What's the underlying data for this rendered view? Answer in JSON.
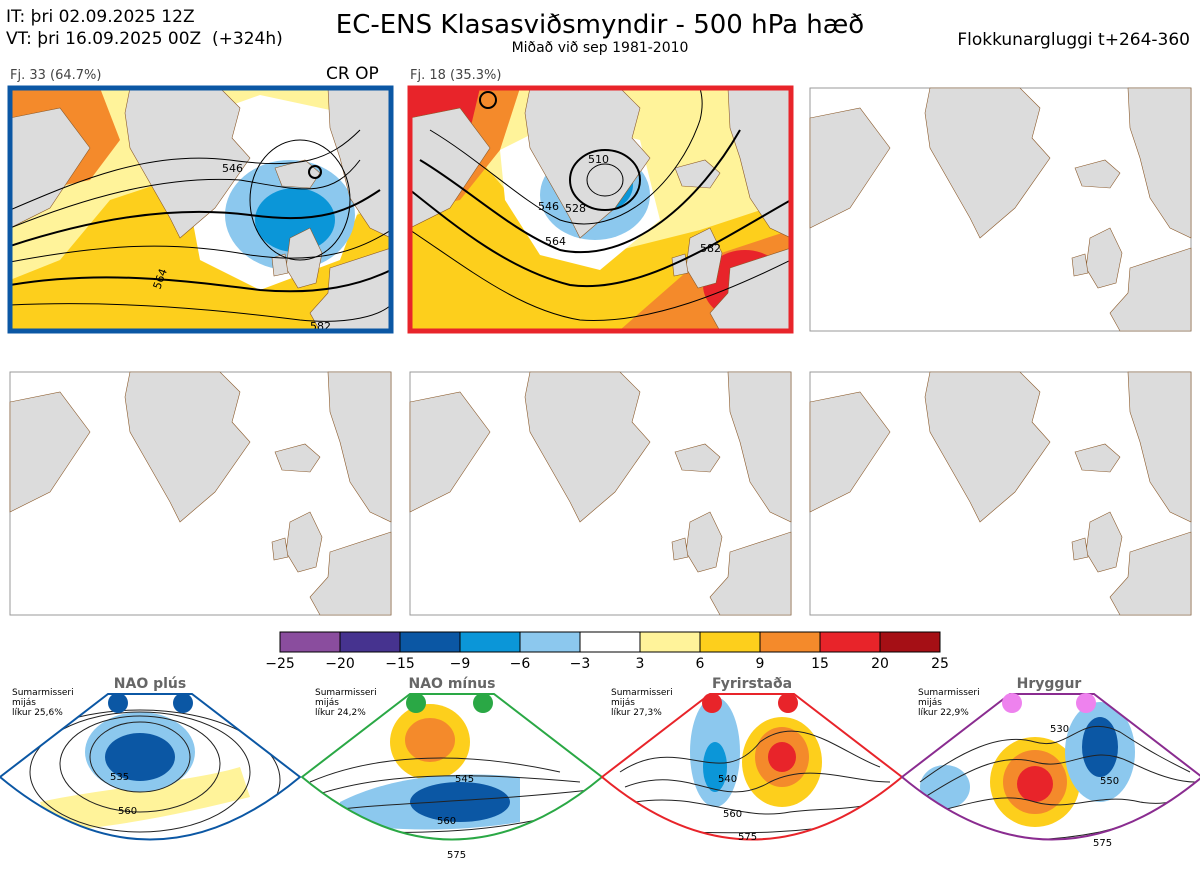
{
  "header": {
    "it": "IT: þri 02.09.2025 12Z",
    "vt_date": "VT: þri 16.09.2025 00Z",
    "vt_lead": "(+324h)",
    "title": "EC-ENS Klasasviðsmyndir - 500 hPa hæð",
    "subtitle": "Miðað við sep 1981-2010",
    "window": "Flokkunargluggi t+264-360"
  },
  "panels": [
    {
      "label": "Fj. 33 (64.7%)",
      "tag": "CR OP",
      "border": "#0b57a4",
      "contours": [
        "546",
        "564",
        "582"
      ]
    },
    {
      "label": "Fj. 18 (35.3%)",
      "tag": "",
      "border": "#e8242a",
      "contours": [
        "510",
        "528",
        "546",
        "564",
        "582"
      ]
    },
    {
      "label": "",
      "tag": "",
      "border": ""
    },
    {
      "label": "",
      "tag": "",
      "border": ""
    },
    {
      "label": "",
      "tag": "",
      "border": ""
    },
    {
      "label": "",
      "tag": "",
      "border": ""
    }
  ],
  "colorbar": {
    "colors": [
      "#8a4d9e",
      "#46338f",
      "#0b57a4",
      "#0b96d8",
      "#8cc8ee",
      "#ffffff",
      "#fff39a",
      "#fdcf1c",
      "#f48a2b",
      "#e8242a",
      "#a50f15"
    ],
    "ticks": [
      "−25",
      "−20",
      "−15",
      "−9",
      "−6",
      "−3",
      "3",
      "6",
      "9",
      "15",
      "20",
      "25"
    ]
  },
  "regimes": [
    {
      "name": "NAO plús",
      "info1": "Sumarmisseri",
      "info2": "mijás",
      "info3": "líkur 25,6%",
      "color": "#0b57a4",
      "dot": "#0b57a4",
      "contours": [
        "535",
        "560"
      ]
    },
    {
      "name": "NAO mínus",
      "info1": "Sumarmisseri",
      "info2": "mijás",
      "info3": "líkur 24,2%",
      "color": "#2aa845",
      "dot": "#2aa845",
      "contours": [
        "545",
        "560",
        "575"
      ]
    },
    {
      "name": "Fyrirstaða",
      "info1": "Sumarmisseri",
      "info2": "mijás",
      "info3": "líkur 27,3%",
      "color": "#e8242a",
      "dot": "#e8242a",
      "contours": [
        "540",
        "560",
        "575"
      ]
    },
    {
      "name": "Hryggur",
      "info1": "Sumarmisseri",
      "info2": "mijás",
      "info3": "líkur 22,9%",
      "color": "#8a2c90",
      "dot": "#ee82ee",
      "contours": [
        "530",
        "550",
        "575"
      ]
    }
  ]
}
